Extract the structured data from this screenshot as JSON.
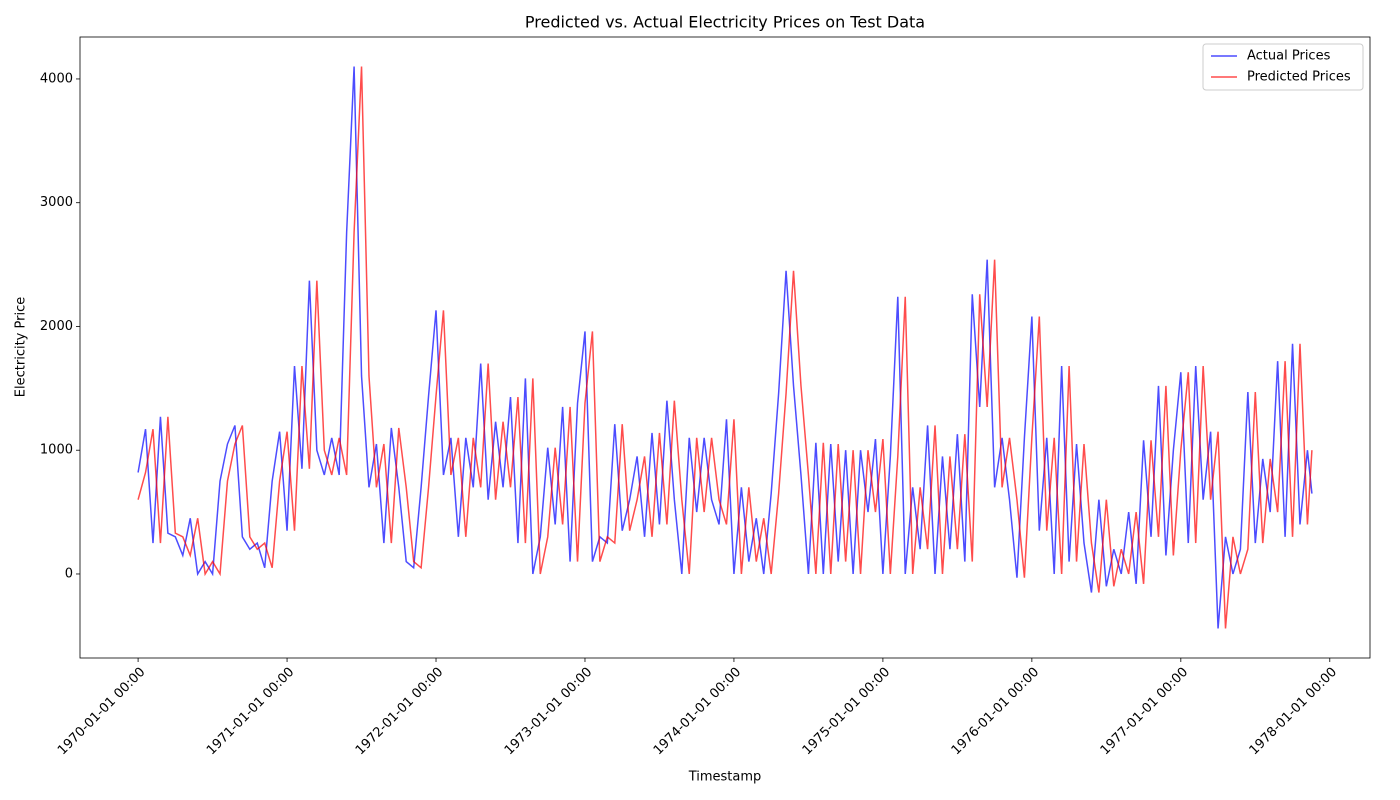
{
  "chart_data": {
    "type": "line",
    "title": "Predicted vs. Actual Electricity Prices on Test Data",
    "x_label": "Timestamp",
    "y_label": "Electricity Price",
    "x": [
      1970,
      1970.05,
      1970.1,
      1970.15,
      1970.2,
      1970.25,
      1970.3,
      1970.35,
      1970.4,
      1970.45,
      1970.5,
      1970.55,
      1970.6,
      1970.65,
      1970.7,
      1970.75,
      1970.8,
      1970.85,
      1970.9,
      1970.95,
      1971,
      1971.05,
      1971.1,
      1971.15,
      1971.2,
      1971.25,
      1971.3,
      1971.35,
      1971.4,
      1971.45,
      1971.5,
      1971.55,
      1971.6,
      1971.65,
      1971.7,
      1971.75,
      1971.8,
      1971.85,
      1971.9,
      1971.95,
      1972,
      1972.05,
      1972.1,
      1972.15,
      1972.2,
      1972.25,
      1972.3,
      1972.35,
      1972.4,
      1972.45,
      1972.5,
      1972.55,
      1972.6,
      1972.65,
      1972.7,
      1972.75,
      1972.8,
      1972.85,
      1972.9,
      1972.95,
      1973,
      1973.05,
      1973.1,
      1973.15,
      1973.2,
      1973.25,
      1973.3,
      1973.35,
      1973.4,
      1973.45,
      1973.5,
      1973.55,
      1973.6,
      1973.65,
      1973.7,
      1973.75,
      1973.8,
      1973.85,
      1973.9,
      1973.95,
      1974,
      1974.05,
      1974.1,
      1974.15,
      1974.2,
      1974.25,
      1974.3,
      1974.35,
      1974.4,
      1974.45,
      1974.5,
      1974.55,
      1974.6,
      1974.65,
      1974.7,
      1974.75,
      1974.8,
      1974.85,
      1974.9,
      1974.95,
      1975,
      1975.05,
      1975.1,
      1975.15,
      1975.2,
      1975.25,
      1975.3,
      1975.35,
      1975.4,
      1975.45,
      1975.5,
      1975.55,
      1975.6,
      1975.65,
      1975.7,
      1975.75,
      1975.8,
      1975.85,
      1975.9,
      1975.95,
      1976,
      1976.05,
      1976.1,
      1976.15,
      1976.2,
      1976.25,
      1976.3,
      1976.35,
      1976.4,
      1976.45,
      1976.5,
      1976.55,
      1976.6,
      1976.65,
      1976.7,
      1976.75,
      1976.8,
      1976.85,
      1976.9,
      1976.95,
      1977,
      1977.05,
      1977.1,
      1977.15,
      1977.2,
      1977.25,
      1977.3,
      1977.35,
      1977.4,
      1977.45,
      1977.5,
      1977.55,
      1977.6,
      1977.65,
      1977.7,
      1977.75,
      1977.8,
      1977.85,
      1977.88
    ],
    "series": [
      {
        "name": "Actual Prices",
        "color": "#0000ff",
        "values": [
          820,
          1170,
          250,
          1270,
          330,
          300,
          150,
          450,
          0,
          100,
          0,
          750,
          1050,
          1200,
          300,
          200,
          250,
          50,
          750,
          1150,
          350,
          1680,
          850,
          2370,
          1000,
          800,
          1100,
          800,
          2760,
          4100,
          1600,
          700,
          1050,
          250,
          1180,
          700,
          100,
          50,
          700,
          1440,
          2130,
          800,
          1100,
          300,
          1100,
          700,
          1700,
          600,
          1230,
          700,
          1430,
          250,
          1580,
          0,
          300,
          1020,
          400,
          1350,
          100,
          1380,
          1960,
          100,
          300,
          250,
          1210,
          350,
          600,
          950,
          300,
          1140,
          400,
          1400,
          600,
          0,
          1100,
          500,
          1100,
          600,
          400,
          1250,
          0,
          700,
          100,
          450,
          0,
          650,
          1460,
          2450,
          1520,
          800,
          0,
          1060,
          0,
          1050,
          100,
          1000,
          0,
          1000,
          500,
          1090,
          0,
          950,
          2240,
          0,
          700,
          200,
          1200,
          0,
          950,
          200,
          1130,
          100,
          2260,
          1350,
          2540,
          700,
          1100,
          600,
          -30,
          1100,
          2080,
          350,
          1100,
          0,
          1680,
          100,
          1050,
          250,
          -150,
          600,
          -100,
          200,
          0,
          500,
          -80,
          1080,
          300,
          1520,
          150,
          1000,
          1630,
          250,
          1680,
          600,
          1150,
          -440,
          300,
          0,
          200,
          1470,
          250,
          930,
          500,
          1720,
          300,
          1860,
          400,
          1000,
          650
        ]
      },
      {
        "name": "Predicted Prices",
        "color": "#ff0000",
        "values": [
          600,
          820,
          1170,
          250,
          1270,
          330,
          300,
          150,
          450,
          0,
          100,
          0,
          750,
          1050,
          1200,
          300,
          200,
          250,
          50,
          750,
          1150,
          350,
          1680,
          850,
          2370,
          1000,
          800,
          1100,
          800,
          2760,
          4100,
          1600,
          700,
          1050,
          250,
          1180,
          700,
          100,
          50,
          700,
          1440,
          2130,
          800,
          1100,
          300,
          1100,
          700,
          1700,
          600,
          1230,
          700,
          1430,
          250,
          1580,
          0,
          300,
          1020,
          400,
          1350,
          100,
          1380,
          1960,
          100,
          300,
          250,
          1210,
          350,
          600,
          950,
          300,
          1140,
          400,
          1400,
          600,
          0,
          1100,
          500,
          1100,
          600,
          400,
          1250,
          0,
          700,
          100,
          450,
          0,
          650,
          1460,
          2450,
          1520,
          800,
          0,
          1060,
          0,
          1050,
          100,
          1000,
          0,
          1000,
          500,
          1090,
          0,
          950,
          2240,
          0,
          700,
          200,
          1200,
          0,
          950,
          200,
          1130,
          100,
          2260,
          1350,
          2540,
          700,
          1100,
          600,
          -30,
          1100,
          2080,
          350,
          1100,
          0,
          1680,
          100,
          1050,
          250,
          -150,
          600,
          -100,
          200,
          0,
          500,
          -80,
          1080,
          300,
          1520,
          150,
          1000,
          1630,
          250,
          1680,
          600,
          1150,
          -440,
          300,
          0,
          200,
          1470,
          250,
          930,
          500,
          1720,
          300,
          1860,
          400,
          1000
        ]
      }
    ],
    "xlim": [
      1969.61,
      1978.27
    ],
    "xticks": [
      {
        "value": 1970,
        "label": "1970-01-01 00:00"
      },
      {
        "value": 1971,
        "label": "1971-01-01 00:00"
      },
      {
        "value": 1972,
        "label": "1972-01-01 00:00"
      },
      {
        "value": 1973,
        "label": "1973-01-01 00:00"
      },
      {
        "value": 1974,
        "label": "1974-01-01 00:00"
      },
      {
        "value": 1975,
        "label": "1975-01-01 00:00"
      },
      {
        "value": 1976,
        "label": "1976-01-01 00:00"
      },
      {
        "value": 1977,
        "label": "1977-01-01 00:00"
      },
      {
        "value": 1978,
        "label": "1978-01-01 00:00"
      }
    ],
    "ylim": [
      -679,
      4339
    ],
    "yticks": [
      0,
      1000,
      2000,
      3000,
      4000
    ],
    "legend": "upper right",
    "grid": false
  }
}
